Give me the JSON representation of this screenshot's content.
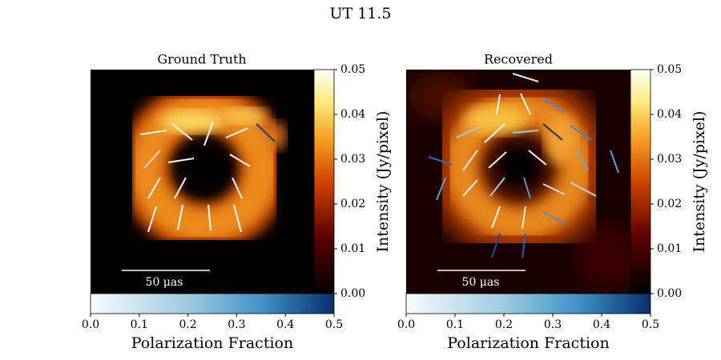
{
  "title": "UT 11.5",
  "panels": [
    {
      "title": "Ground Truth",
      "scale_bar": "50 μas"
    },
    {
      "title": "Recovered",
      "scale_bar": "50 μas"
    }
  ],
  "intensity_colorbar": {
    "label": "Intensity (Jy/pixel)",
    "lim": [
      0,
      0.05
    ],
    "ticks": [
      {
        "value": 0,
        "label": "0.00"
      },
      {
        "value": 0.01,
        "label": "0.01"
      },
      {
        "value": 0.02,
        "label": "0.02"
      },
      {
        "value": 0.03,
        "label": "0.03"
      },
      {
        "value": 0.04,
        "label": "0.04"
      },
      {
        "value": 0.05,
        "label": "0.05"
      }
    ]
  },
  "fraction_colorbar": {
    "label": "Polarization Fraction",
    "lim": [
      0,
      0.5
    ],
    "ticks": [
      {
        "value": 0,
        "label": "0.0"
      },
      {
        "value": 0.1,
        "label": "0.1"
      },
      {
        "value": 0.2,
        "label": "0.2"
      },
      {
        "value": 0.3,
        "label": "0.3"
      },
      {
        "value": 0.4,
        "label": "0.4"
      },
      {
        "value": 0.5,
        "label": "0.5"
      }
    ]
  }
}
